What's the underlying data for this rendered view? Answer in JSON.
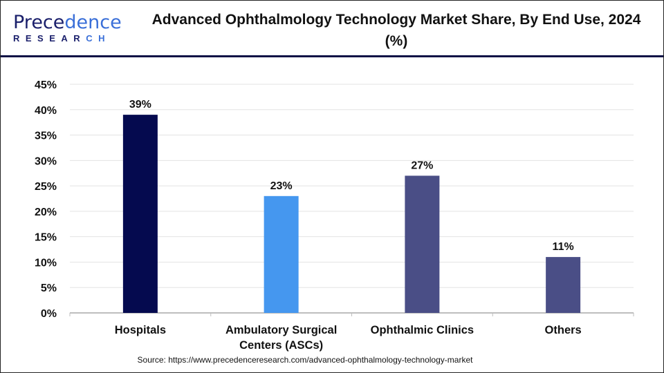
{
  "logo": {
    "line1": "Precedence",
    "line2": "RESEARCH"
  },
  "chart_data": {
    "type": "bar",
    "title": "Advanced Ophthalmology Technology Market Share, By End Use, 2024 (%)",
    "categories": [
      "Hospitals",
      "Ambulatory Surgical Centers (ASCs)",
      "Ophthalmic Clinics",
      "Others"
    ],
    "category_lines": [
      [
        "Hospitals"
      ],
      [
        "Ambulatory Surgical",
        "Centers (ASCs)"
      ],
      [
        "Ophthalmic Clinics"
      ],
      [
        "Others"
      ]
    ],
    "values": [
      39,
      23,
      27,
      11
    ],
    "data_labels": [
      "39%",
      "23%",
      "27%",
      "11%"
    ],
    "colors": [
      "#050a4f",
      "#4597ef",
      "#4a4e86",
      "#4a4e86"
    ],
    "ylim": [
      0,
      45
    ],
    "yticks": [
      0,
      5,
      10,
      15,
      20,
      25,
      30,
      35,
      40,
      45
    ],
    "ytick_labels": [
      "0%",
      "5%",
      "10%",
      "15%",
      "20%",
      "25%",
      "30%",
      "35%",
      "40%",
      "45%"
    ],
    "grid": true,
    "xlabel": "",
    "ylabel": ""
  },
  "source": "Source: https://www.precedenceresearch.com/advanced-ophthalmology-technology-market"
}
